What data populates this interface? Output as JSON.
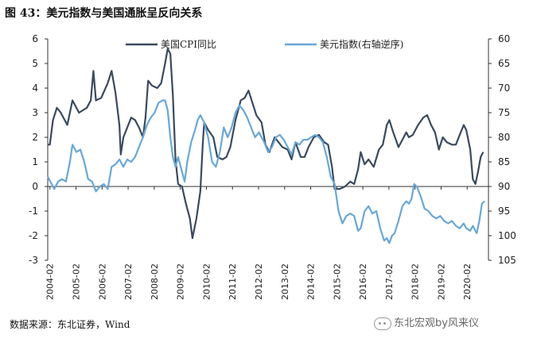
{
  "figure": {
    "title": "图 43：美元指数与美国通胀呈反向关系",
    "source": "数据来源：东北证券，Wind",
    "watermark": "东北宏观by风来仪"
  },
  "colors": {
    "cpi": "#3a4a5e",
    "usd": "#6aa7d6",
    "axis": "#333333"
  },
  "chart_data": {
    "type": "line",
    "x_labels": [
      "2004-02",
      "2005-02",
      "2006-02",
      "2007-02",
      "2008-02",
      "2009-02",
      "2010-02",
      "2011-02",
      "2012-02",
      "2013-02",
      "2014-02",
      "2015-02",
      "2016-02",
      "2017-02",
      "2018-02",
      "2019-02",
      "2020-02"
    ],
    "y_left": {
      "min": -3,
      "max": 6,
      "ticks": [
        -3,
        -2,
        -1,
        0,
        1,
        2,
        3,
        4,
        5,
        6
      ]
    },
    "y_right": {
      "min": 60,
      "max": 105,
      "inverted": true,
      "ticks": [
        60,
        65,
        70,
        75,
        80,
        85,
        90,
        95,
        100,
        105
      ]
    },
    "series": [
      {
        "name": "美国CPI同比",
        "axis": "left",
        "points": [
          [
            2004.0,
            1.7
          ],
          [
            2004.08,
            1.7
          ],
          [
            2004.2,
            2.7
          ],
          [
            2004.35,
            3.2
          ],
          [
            2004.5,
            3.0
          ],
          [
            2004.75,
            2.5
          ],
          [
            2004.95,
            3.5
          ],
          [
            2005.2,
            3.0
          ],
          [
            2005.5,
            3.2
          ],
          [
            2005.65,
            3.5
          ],
          [
            2005.75,
            4.7
          ],
          [
            2005.85,
            3.5
          ],
          [
            2006.05,
            3.6
          ],
          [
            2006.3,
            4.2
          ],
          [
            2006.45,
            4.7
          ],
          [
            2006.6,
            3.8
          ],
          [
            2006.75,
            2.5
          ],
          [
            2006.8,
            1.3
          ],
          [
            2006.9,
            2.0
          ],
          [
            2007.05,
            2.4
          ],
          [
            2007.2,
            2.8
          ],
          [
            2007.35,
            2.7
          ],
          [
            2007.5,
            2.4
          ],
          [
            2007.65,
            2.0
          ],
          [
            2007.75,
            2.8
          ],
          [
            2007.85,
            4.3
          ],
          [
            2008.0,
            4.1
          ],
          [
            2008.2,
            4.0
          ],
          [
            2008.35,
            4.2
          ],
          [
            2008.5,
            5.0
          ],
          [
            2008.6,
            5.6
          ],
          [
            2008.7,
            5.4
          ],
          [
            2008.8,
            3.7
          ],
          [
            2008.9,
            1.1
          ],
          [
            2009.0,
            0.1
          ],
          [
            2009.15,
            0.0
          ],
          [
            2009.3,
            -0.7
          ],
          [
            2009.45,
            -1.3
          ],
          [
            2009.55,
            -2.1
          ],
          [
            2009.7,
            -1.3
          ],
          [
            2009.85,
            -0.2
          ],
          [
            2009.95,
            1.8
          ],
          [
            2010.0,
            2.6
          ],
          [
            2010.15,
            2.3
          ],
          [
            2010.35,
            2.0
          ],
          [
            2010.5,
            1.2
          ],
          [
            2010.7,
            1.1
          ],
          [
            2010.85,
            1.2
          ],
          [
            2011.0,
            1.6
          ],
          [
            2011.2,
            2.7
          ],
          [
            2011.4,
            3.5
          ],
          [
            2011.55,
            3.6
          ],
          [
            2011.7,
            3.9
          ],
          [
            2011.85,
            3.4
          ],
          [
            2012.0,
            2.9
          ],
          [
            2012.2,
            2.6
          ],
          [
            2012.35,
            1.7
          ],
          [
            2012.5,
            1.4
          ],
          [
            2012.7,
            2.0
          ],
          [
            2012.85,
            1.8
          ],
          [
            2013.0,
            1.6
          ],
          [
            2013.2,
            1.5
          ],
          [
            2013.35,
            1.1
          ],
          [
            2013.5,
            1.8
          ],
          [
            2013.7,
            1.2
          ],
          [
            2013.85,
            1.2
          ],
          [
            2014.0,
            1.6
          ],
          [
            2014.2,
            2.0
          ],
          [
            2014.4,
            2.1
          ],
          [
            2014.6,
            1.8
          ],
          [
            2014.75,
            1.7
          ],
          [
            2014.9,
            0.8
          ],
          [
            2015.0,
            -0.1
          ],
          [
            2015.2,
            -0.1
          ],
          [
            2015.4,
            0.0
          ],
          [
            2015.6,
            0.2
          ],
          [
            2015.75,
            0.1
          ],
          [
            2015.9,
            0.7
          ],
          [
            2016.0,
            1.4
          ],
          [
            2016.15,
            0.9
          ],
          [
            2016.3,
            1.1
          ],
          [
            2016.5,
            0.8
          ],
          [
            2016.7,
            1.5
          ],
          [
            2016.85,
            1.7
          ],
          [
            2017.0,
            2.5
          ],
          [
            2017.1,
            2.7
          ],
          [
            2017.25,
            2.2
          ],
          [
            2017.45,
            1.6
          ],
          [
            2017.6,
            1.9
          ],
          [
            2017.75,
            2.2
          ],
          [
            2017.85,
            2.0
          ],
          [
            2018.0,
            2.1
          ],
          [
            2018.2,
            2.5
          ],
          [
            2018.4,
            2.8
          ],
          [
            2018.55,
            2.9
          ],
          [
            2018.7,
            2.5
          ],
          [
            2018.85,
            2.2
          ],
          [
            2019.0,
            1.5
          ],
          [
            2019.15,
            2.0
          ],
          [
            2019.3,
            1.8
          ],
          [
            2019.5,
            1.7
          ],
          [
            2019.65,
            1.7
          ],
          [
            2019.8,
            2.1
          ],
          [
            2019.95,
            2.5
          ],
          [
            2020.05,
            2.3
          ],
          [
            2020.2,
            1.5
          ],
          [
            2020.3,
            0.3
          ],
          [
            2020.4,
            0.1
          ],
          [
            2020.5,
            0.6
          ],
          [
            2020.6,
            1.2
          ],
          [
            2020.7,
            1.4
          ]
        ]
      },
      {
        "name": "美元指数(右轴逆序)",
        "axis": "right",
        "points": [
          [
            2004.0,
            88
          ],
          [
            2004.1,
            89
          ],
          [
            2004.25,
            90.5
          ],
          [
            2004.4,
            89
          ],
          [
            2004.55,
            88.5
          ],
          [
            2004.7,
            89
          ],
          [
            2004.85,
            85
          ],
          [
            2004.95,
            81.5
          ],
          [
            2005.1,
            83
          ],
          [
            2005.25,
            82.5
          ],
          [
            2005.4,
            85
          ],
          [
            2005.55,
            88.5
          ],
          [
            2005.7,
            89
          ],
          [
            2005.85,
            91
          ],
          [
            2006.0,
            90
          ],
          [
            2006.15,
            89.5
          ],
          [
            2006.3,
            90.5
          ],
          [
            2006.45,
            86
          ],
          [
            2006.6,
            85.5
          ],
          [
            2006.75,
            84.5
          ],
          [
            2006.9,
            86
          ],
          [
            2007.05,
            84.5
          ],
          [
            2007.2,
            85
          ],
          [
            2007.35,
            84
          ],
          [
            2007.5,
            82
          ],
          [
            2007.65,
            80
          ],
          [
            2007.8,
            77.5
          ],
          [
            2007.95,
            76
          ],
          [
            2008.1,
            75
          ],
          [
            2008.25,
            73
          ],
          [
            2008.4,
            72.5
          ],
          [
            2008.5,
            72.5
          ],
          [
            2008.6,
            74.5
          ],
          [
            2008.7,
            80
          ],
          [
            2008.8,
            84
          ],
          [
            2008.9,
            86
          ],
          [
            2009.0,
            84
          ],
          [
            2009.15,
            87
          ],
          [
            2009.25,
            89
          ],
          [
            2009.35,
            85
          ],
          [
            2009.5,
            81
          ],
          [
            2009.65,
            78.5
          ],
          [
            2009.75,
            76.5
          ],
          [
            2009.85,
            75.5
          ],
          [
            2010.0,
            77
          ],
          [
            2010.15,
            80
          ],
          [
            2010.3,
            85
          ],
          [
            2010.45,
            86
          ],
          [
            2010.6,
            83
          ],
          [
            2010.75,
            78
          ],
          [
            2010.9,
            80
          ],
          [
            2011.05,
            78
          ],
          [
            2011.2,
            75
          ],
          [
            2011.35,
            73.5
          ],
          [
            2011.5,
            74.5
          ],
          [
            2011.65,
            76
          ],
          [
            2011.8,
            78
          ],
          [
            2011.95,
            80
          ],
          [
            2012.1,
            79
          ],
          [
            2012.3,
            81
          ],
          [
            2012.45,
            83
          ],
          [
            2012.6,
            82
          ],
          [
            2012.75,
            80
          ],
          [
            2012.9,
            79.5
          ],
          [
            2013.05,
            80.5
          ],
          [
            2013.2,
            82
          ],
          [
            2013.35,
            83.5
          ],
          [
            2013.5,
            81
          ],
          [
            2013.65,
            81.5
          ],
          [
            2013.8,
            80.5
          ],
          [
            2013.95,
            80.5
          ],
          [
            2014.1,
            80
          ],
          [
            2014.25,
            79.5
          ],
          [
            2014.4,
            80
          ],
          [
            2014.55,
            81
          ],
          [
            2014.7,
            84
          ],
          [
            2014.85,
            88
          ],
          [
            2015.0,
            89.5
          ],
          [
            2015.15,
            95
          ],
          [
            2015.3,
            97.5
          ],
          [
            2015.45,
            96
          ],
          [
            2015.6,
            95.5
          ],
          [
            2015.75,
            96
          ],
          [
            2015.9,
            99
          ],
          [
            2016.0,
            98.5
          ],
          [
            2016.15,
            95
          ],
          [
            2016.3,
            94
          ],
          [
            2016.45,
            95.5
          ],
          [
            2016.6,
            95
          ],
          [
            2016.75,
            98.5
          ],
          [
            2016.9,
            101
          ],
          [
            2017.0,
            100.5
          ],
          [
            2017.1,
            101.5
          ],
          [
            2017.2,
            100
          ],
          [
            2017.3,
            99.5
          ],
          [
            2017.45,
            97
          ],
          [
            2017.6,
            94
          ],
          [
            2017.75,
            93
          ],
          [
            2017.85,
            93.5
          ],
          [
            2017.95,
            92.5
          ],
          [
            2018.05,
            89.5
          ],
          [
            2018.15,
            90
          ],
          [
            2018.3,
            92
          ],
          [
            2018.45,
            94.5
          ],
          [
            2018.6,
            95
          ],
          [
            2018.75,
            96
          ],
          [
            2018.9,
            96.5
          ],
          [
            2019.05,
            96
          ],
          [
            2019.2,
            97
          ],
          [
            2019.35,
            97.5
          ],
          [
            2019.5,
            97
          ],
          [
            2019.65,
            98
          ],
          [
            2019.8,
            98.5
          ],
          [
            2019.95,
            97.5
          ],
          [
            2020.05,
            98.5
          ],
          [
            2020.2,
            99
          ],
          [
            2020.3,
            98
          ],
          [
            2020.45,
            99.5
          ],
          [
            2020.55,
            97
          ],
          [
            2020.65,
            93.5
          ],
          [
            2020.75,
            93
          ]
        ]
      }
    ]
  }
}
